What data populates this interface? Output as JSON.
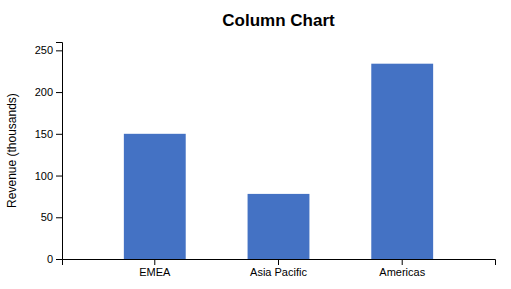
{
  "chart_data": {
    "type": "bar",
    "title": "Column Chart",
    "categories": [
      "EMEA",
      "Asia Pacific",
      "Americas"
    ],
    "values": [
      150,
      78,
      234
    ],
    "color": "#4472C4",
    "ylabel": "Revenue (thousands)",
    "ylim": [
      0,
      260
    ],
    "yticks": [
      0,
      50,
      100,
      150,
      200,
      250
    ],
    "grid": false
  }
}
